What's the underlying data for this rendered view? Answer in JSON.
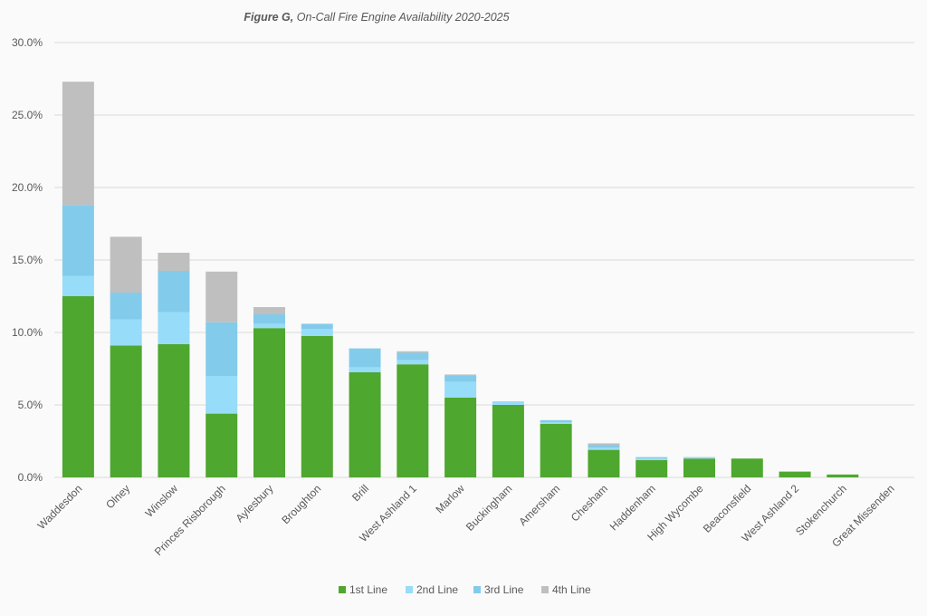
{
  "chart_data": {
    "type": "bar",
    "stacked": true,
    "title_bold": "Figure G,",
    "title_rest": " On-Call Fire Engine Availability 2020-2025",
    "xlabel": "",
    "ylabel": "",
    "ylim": [
      0,
      30
    ],
    "yticks": [
      "0.0%",
      "5.0%",
      "10.0%",
      "15.0%",
      "20.0%",
      "25.0%",
      "30.0%"
    ],
    "ytick_values": [
      0,
      5,
      10,
      15,
      20,
      25,
      30
    ],
    "grid": true,
    "legend_position": "bottom",
    "categories": [
      "Waddesdon",
      "Olney",
      "Winslow",
      "Princes Risborough",
      "Aylesbury",
      "Broughton",
      "Brill",
      "West Ashland 1",
      "Marlow",
      "Buckingham",
      "Amersham",
      "Chesham",
      "Haddenham",
      "High Wycombe",
      "Beaconsfield",
      "West Ashland 2",
      "Stokenchurch",
      "Great Missenden"
    ],
    "series": [
      {
        "name": "1st Line",
        "color": "#4ea72e",
        "values": [
          12.5,
          9.1,
          9.2,
          4.4,
          10.3,
          9.75,
          7.25,
          7.8,
          5.5,
          5.0,
          3.7,
          1.9,
          1.2,
          1.3,
          1.3,
          0.4,
          0.2,
          0
        ]
      },
      {
        "name": "2nd Line",
        "color": "#97dcf8",
        "values": [
          1.4,
          1.8,
          2.2,
          2.6,
          0.3,
          0.5,
          0.35,
          0.3,
          1.1,
          0.25,
          0.1,
          0.15,
          0.1,
          0.05,
          0,
          0,
          0,
          0
        ]
      },
      {
        "name": "3rd Line",
        "color": "#83cbeb",
        "values": [
          4.9,
          1.85,
          2.85,
          3.7,
          0.65,
          0.35,
          1.3,
          0.5,
          0.4,
          0,
          0.15,
          0.2,
          0.1,
          0.05,
          0,
          0,
          0,
          0
        ]
      },
      {
        "name": "4th Line",
        "color": "#bfbfbf",
        "values": [
          8.5,
          3.85,
          1.25,
          3.5,
          0.5,
          0,
          0,
          0.1,
          0.1,
          0,
          0,
          0.1,
          0,
          0,
          0,
          0,
          0,
          0
        ]
      }
    ]
  }
}
